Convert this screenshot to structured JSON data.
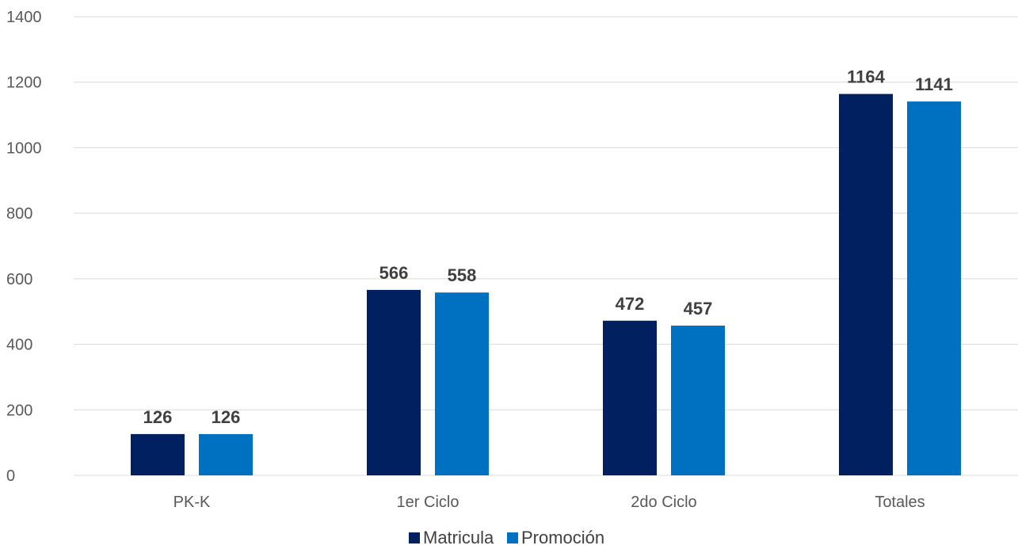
{
  "chart_data": {
    "type": "bar",
    "title": "",
    "xlabel": "",
    "ylabel": "",
    "categories": [
      "PK-K",
      "1er Ciclo",
      "2do Ciclo",
      "Totales"
    ],
    "series": [
      {
        "name": "Matricula",
        "values": [
          126,
          566,
          472,
          1164
        ],
        "color": "#002060"
      },
      {
        "name": "Promoción",
        "values": [
          126,
          558,
          457,
          1141
        ],
        "color": "#0070C0"
      }
    ],
    "ylim": [
      0,
      1400
    ],
    "yticks": [
      0,
      200,
      400,
      600,
      800,
      1000,
      1200,
      1400
    ],
    "grid": true,
    "legend_position": "bottom"
  }
}
